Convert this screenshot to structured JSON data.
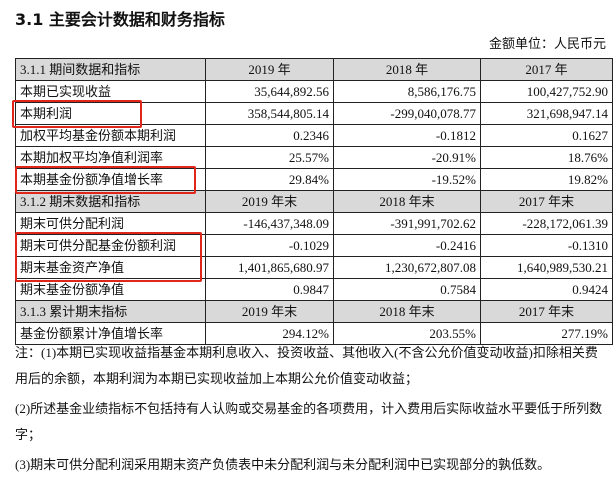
{
  "title": "3.1 主要会计数据和财务指标",
  "unit": "金额单位：人民币元",
  "sections": [
    {
      "header": [
        "3.1.1 期间数据和指标",
        "2019 年",
        "2018 年",
        "2017 年"
      ],
      "rows": [
        [
          "本期已实现收益",
          "35,644,892.56",
          "8,586,176.75",
          "100,427,752.90"
        ],
        [
          "本期利润",
          "358,544,805.14",
          "-299,040,078.77",
          "321,698,947.14"
        ],
        [
          "加权平均基金份额本期利润",
          "0.2346",
          "-0.1812",
          "0.1627"
        ],
        [
          "本期加权平均净值利润率",
          "25.57%",
          "-20.91%",
          "18.76%"
        ],
        [
          "本期基金份额净值增长率",
          "29.84%",
          "-19.52%",
          "19.82%"
        ]
      ]
    },
    {
      "header": [
        "3.1.2 期末数据和指标",
        "2019 年末",
        "2018 年末",
        "2017 年末"
      ],
      "rows": [
        [
          "期末可供分配利润",
          "-146,437,348.09",
          "-391,991,702.62",
          "-228,172,061.39"
        ],
        [
          "期末可供分配基金份额利润",
          "-0.1029",
          "-0.2416",
          "-0.1310"
        ],
        [
          "期末基金资产净值",
          "1,401,865,680.97",
          "1,230,672,807.08",
          "1,640,989,530.21"
        ],
        [
          "期末基金份额净值",
          "0.9847",
          "0.7584",
          "0.9424"
        ]
      ]
    },
    {
      "header": [
        "3.1.3 累计期末指标",
        "2019 年末",
        "2018 年末",
        "2017 年末"
      ],
      "rows": [
        [
          "基金份额累计净值增长率",
          "294.12%",
          "203.55%",
          "277.19%"
        ]
      ]
    }
  ],
  "notes": [
    "注：(1)本期已实现收益指基金本期利息收入、投资收益、其他收入(不含公允价值变动收益)扣除相关费用后的余额，本期利润为本期已实现收益加上本期公允价值变动收益；",
    "(2)所述基金业绩指标不包括持有人认购或交易基金的各项费用，计入费用后实际收益水平要低于所列数字；",
    "(3)期末可供分配利润采用期末资产负债表中未分配利润与未分配利润中已实现部分的孰低数。"
  ],
  "highlight_color": "#e0251b"
}
